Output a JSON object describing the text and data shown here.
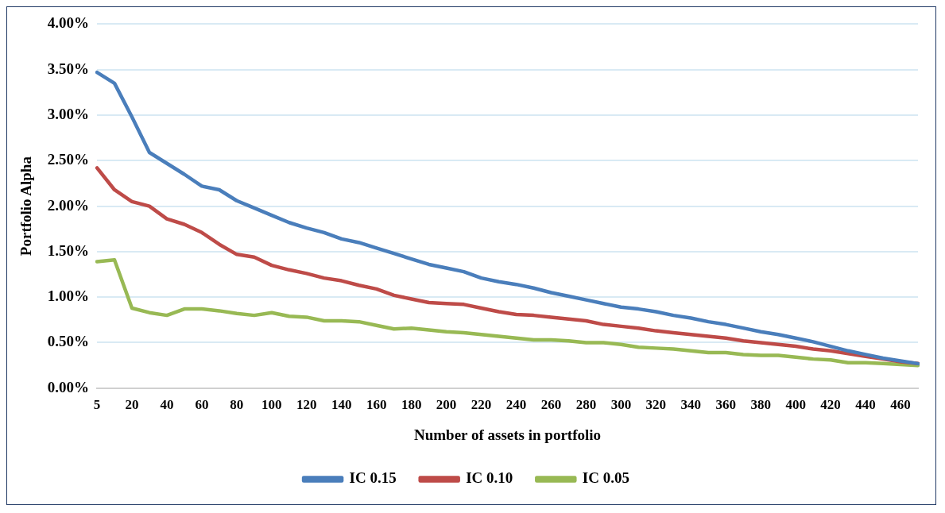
{
  "chart_data": {
    "type": "line",
    "xlabel": "Number of assets in portfolio",
    "ylabel": "Portfolio Alpha",
    "categories": [
      "5",
      null,
      "20",
      null,
      "40",
      null,
      "60",
      null,
      "80",
      null,
      "100",
      null,
      "120",
      null,
      "140",
      null,
      "160",
      null,
      "180",
      null,
      "200",
      null,
      "220",
      null,
      "240",
      null,
      "260",
      null,
      "280",
      null,
      "300",
      null,
      "320",
      null,
      "340",
      null,
      "360",
      null,
      "380",
      null,
      "400",
      null,
      "420",
      null,
      "440",
      null,
      "460",
      null
    ],
    "series": [
      {
        "name": "IC 0.15",
        "color": "#4a7ebb",
        "values": [
          3.47,
          3.35,
          2.98,
          2.59,
          2.47,
          2.35,
          2.22,
          2.18,
          2.06,
          1.98,
          1.9,
          1.82,
          1.76,
          1.71,
          1.64,
          1.6,
          1.54,
          1.48,
          1.42,
          1.36,
          1.32,
          1.28,
          1.21,
          1.17,
          1.14,
          1.1,
          1.05,
          1.01,
          0.97,
          0.93,
          0.89,
          0.87,
          0.84,
          0.8,
          0.77,
          0.73,
          0.7,
          0.66,
          0.62,
          0.59,
          0.55,
          0.51,
          0.46,
          0.41,
          0.37,
          0.33,
          0.3,
          0.27
        ]
      },
      {
        "name": "IC 0.10",
        "color": "#be4b48",
        "values": [
          2.42,
          2.18,
          2.05,
          2.0,
          1.86,
          1.8,
          1.71,
          1.58,
          1.47,
          1.44,
          1.35,
          1.3,
          1.26,
          1.21,
          1.18,
          1.13,
          1.09,
          1.02,
          0.98,
          0.94,
          0.93,
          0.92,
          0.88,
          0.84,
          0.81,
          0.8,
          0.78,
          0.76,
          0.74,
          0.7,
          0.68,
          0.66,
          0.63,
          0.61,
          0.59,
          0.57,
          0.55,
          0.52,
          0.5,
          0.48,
          0.46,
          0.43,
          0.41,
          0.38,
          0.35,
          0.32,
          0.29,
          0.27
        ]
      },
      {
        "name": "IC 0.05",
        "color": "#98b954",
        "values": [
          1.39,
          1.41,
          0.88,
          0.83,
          0.8,
          0.87,
          0.87,
          0.85,
          0.82,
          0.8,
          0.83,
          0.79,
          0.78,
          0.74,
          0.74,
          0.73,
          0.69,
          0.65,
          0.66,
          0.64,
          0.62,
          0.61,
          0.59,
          0.57,
          0.55,
          0.53,
          0.53,
          0.52,
          0.5,
          0.5,
          0.48,
          0.45,
          0.44,
          0.43,
          0.41,
          0.39,
          0.39,
          0.37,
          0.36,
          0.36,
          0.34,
          0.32,
          0.31,
          0.28,
          0.28,
          0.27,
          0.26,
          0.25
        ]
      }
    ],
    "ylim": [
      0,
      4
    ],
    "yticks": [
      {
        "value": 0,
        "label": "0.00%"
      },
      {
        "value": 0.5,
        "label": "0.50%"
      },
      {
        "value": 1,
        "label": "1.00%"
      },
      {
        "value": 1.5,
        "label": "1.50%"
      },
      {
        "value": 2,
        "label": "2.00%"
      },
      {
        "value": 2.5,
        "label": "2.50%"
      },
      {
        "value": 3,
        "label": "3.00%"
      },
      {
        "value": 3.5,
        "label": "3.50%"
      },
      {
        "value": 4,
        "label": "4.00%"
      }
    ],
    "grid": "y",
    "legend": "bottom",
    "marker": "none",
    "line_style": "solid"
  }
}
